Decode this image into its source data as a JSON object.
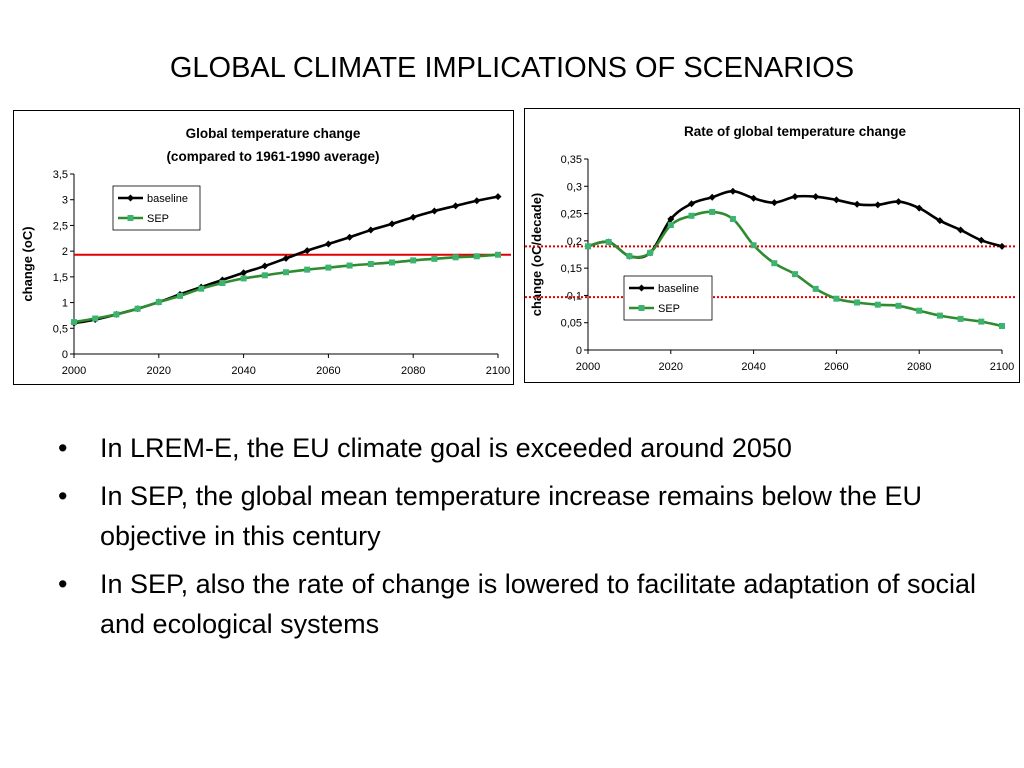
{
  "slide": {
    "title": "GLOBAL CLIMATE IMPLICATIONS OF SCENARIOS",
    "bullets": [
      "In LREM-E, the EU climate goal is exceeded around 2050",
      "In SEP, the global mean temperature increase remains below the EU objective in this century",
      "In SEP, also the rate of change is lowered to facilitate adaptation of social and ecological systems"
    ]
  },
  "colors": {
    "baseline": "#000000",
    "sep": "#2e8b2e",
    "sep_marker": "#3cb371",
    "target_line": "#e00000"
  },
  "chart_data": [
    {
      "type": "line",
      "title": "Global temperature change",
      "subtitle": "(compared to 1961-1990 average)",
      "xlabel": "",
      "ylabel": "change (oC)",
      "xlim": [
        2000,
        2100
      ],
      "ylim": [
        0,
        3.5
      ],
      "xticks": [
        "2000",
        "2020",
        "2040",
        "2060",
        "2080",
        "2100"
      ],
      "yticks": [
        "0",
        "0,5",
        "1",
        "1,5",
        "2",
        "2,5",
        "3",
        "3,5"
      ],
      "legend": "top-left",
      "reference_line": {
        "y": 1.93,
        "color": "#e00000",
        "style": "solid"
      },
      "series": [
        {
          "name": "baseline",
          "x": [
            2000,
            2005,
            2010,
            2015,
            2020,
            2025,
            2030,
            2035,
            2040,
            2045,
            2050,
            2055,
            2060,
            2065,
            2070,
            2075,
            2080,
            2085,
            2090,
            2095,
            2100
          ],
          "values": [
            0.6,
            0.67,
            0.77,
            0.88,
            1.01,
            1.16,
            1.3,
            1.44,
            1.58,
            1.71,
            1.86,
            2.01,
            2.14,
            2.27,
            2.41,
            2.53,
            2.66,
            2.78,
            2.88,
            2.98,
            3.06
          ]
        },
        {
          "name": "SEP",
          "x": [
            2000,
            2005,
            2010,
            2015,
            2020,
            2025,
            2030,
            2035,
            2040,
            2045,
            2050,
            2055,
            2060,
            2065,
            2070,
            2075,
            2080,
            2085,
            2090,
            2095,
            2100
          ],
          "values": [
            0.62,
            0.69,
            0.77,
            0.88,
            1.01,
            1.13,
            1.27,
            1.38,
            1.47,
            1.53,
            1.59,
            1.64,
            1.68,
            1.72,
            1.75,
            1.78,
            1.82,
            1.85,
            1.88,
            1.9,
            1.93
          ]
        }
      ]
    },
    {
      "type": "line",
      "title": "Rate of global temperature change",
      "xlabel": "",
      "ylabel": "change (oC/decade)",
      "xlim": [
        2000,
        2100
      ],
      "ylim": [
        0,
        0.35
      ],
      "xticks": [
        "2000",
        "2020",
        "2040",
        "2060",
        "2080",
        "2100"
      ],
      "yticks": [
        "0",
        "0,05",
        "0,1",
        "0,15",
        "0,2",
        "0,25",
        "0,3",
        "0,35"
      ],
      "legend": "bottom-left",
      "reference_lines": [
        {
          "y": 0.19,
          "color": "#e00000",
          "style": "dotted"
        },
        {
          "y": 0.097,
          "color": "#e00000",
          "style": "dotted"
        }
      ],
      "series": [
        {
          "name": "baseline",
          "x": [
            2000,
            2005,
            2010,
            2015,
            2020,
            2025,
            2030,
            2035,
            2040,
            2045,
            2050,
            2055,
            2060,
            2065,
            2070,
            2075,
            2080,
            2085,
            2090,
            2095,
            2100
          ],
          "values": [
            0.19,
            0.198,
            0.172,
            0.178,
            0.24,
            0.268,
            0.28,
            0.291,
            0.278,
            0.27,
            0.281,
            0.281,
            0.275,
            0.267,
            0.266,
            0.272,
            0.26,
            0.237,
            0.22,
            0.201,
            0.19
          ]
        },
        {
          "name": "SEP",
          "x": [
            2000,
            2005,
            2010,
            2015,
            2020,
            2025,
            2030,
            2035,
            2040,
            2045,
            2050,
            2055,
            2060,
            2065,
            2070,
            2075,
            2080,
            2085,
            2090,
            2095,
            2100
          ],
          "values": [
            0.19,
            0.198,
            0.172,
            0.178,
            0.229,
            0.246,
            0.253,
            0.24,
            0.192,
            0.159,
            0.139,
            0.112,
            0.094,
            0.087,
            0.083,
            0.081,
            0.072,
            0.063,
            0.057,
            0.052,
            0.044
          ]
        }
      ]
    }
  ]
}
